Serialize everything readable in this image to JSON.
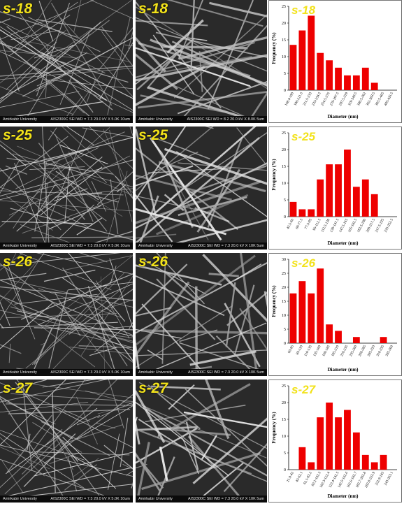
{
  "colors": {
    "sample_label": "#f2e21a",
    "bar_fill": "#ee0000",
    "sem_background": "#2a2a2a"
  },
  "rows": [
    {
      "sample": "s-18",
      "sem_left": {
        "institution": "Amirkabir University",
        "info": "AIS2300C  SEI  WD = 7.3  20.0 kV  X 5.0K   10um"
      },
      "sem_right": {
        "institution": "Amirkabir University",
        "info": "AIS2300C  SEI  WD = 8.2  20.0 kV  X 8.0K   5um"
      }
    },
    {
      "sample": "s-25",
      "sem_left": {
        "institution": "Amirkabir University",
        "info": "AIS2300C  SEI  WD = 7.3  20.0 kV  X 5.0K   10um"
      },
      "sem_right": {
        "institution": "Amirkabir University",
        "info": "AIS2300C  SEI  WD = 7.3  20.0 kV  X 10K   5um"
      }
    },
    {
      "sample": "s-26",
      "sem_left": {
        "institution": "Amirkabir University",
        "info": "AIS2300C  SEI  WD = 7.3  20.0 kV  X 5.0K   10um"
      },
      "sem_right": {
        "institution": "Amirkabir University",
        "info": "AIS2300C  SEI  WD = 7.3  20.0 kV  X 10K   5um"
      }
    },
    {
      "sample": "s-27",
      "sem_left": {
        "institution": "Amirkabir University",
        "info": "AIS2300C  SEI  WD = 7.3  20.0 kV  X 5.0K   10um"
      },
      "sem_right": {
        "institution": "Amirkabir University",
        "info": "AIS2300C  SEI  WD = 7.3  20.0 kV  X 10K   5um"
      }
    }
  ],
  "chart_data": [
    {
      "type": "bar",
      "title": "s-18",
      "xlabel": "Diameter (nm)",
      "ylabel": "Frequency (%)",
      "ylim": [
        0,
        25
      ],
      "yticks": [
        0,
        5,
        10,
        15,
        20,
        25
      ],
      "grid": false,
      "categories": [
        "168.4-190",
        "190-211.5",
        "211.5-233",
        "233-254.5",
        "254.5-276",
        "276-297.5",
        "297.5-319",
        "319-340.5",
        "340.5-362",
        "362-383.5",
        "383.5-405",
        "405-426.5"
      ],
      "values": [
        13.5,
        17.8,
        22.2,
        11.1,
        8.9,
        6.7,
        4.4,
        4.4,
        6.7,
        2.2,
        0,
        0
      ]
    },
    {
      "type": "bar",
      "title": "s-25",
      "xlabel": "Diameter (nm)",
      "ylabel": "Frequency (%)",
      "ylim": [
        0,
        25
      ],
      "yticks": [
        0,
        5,
        10,
        15,
        20,
        25
      ],
      "grid": false,
      "categories": [
        "42.5-60",
        "60-77.5",
        "77.5-95",
        "95-112.5",
        "112.5-130",
        "130-147.5",
        "147.5-165",
        "165-182.5",
        "182.5-200",
        "200-217.5",
        "217.5-235",
        "235-252.5"
      ],
      "values": [
        4.4,
        2.2,
        2.2,
        11.1,
        15.6,
        15.6,
        20,
        8.9,
        11.1,
        6.7,
        0,
        0
      ]
    },
    {
      "type": "bar",
      "title": "s-26",
      "xlabel": "Diameter (nm)",
      "ylabel": "Frequency (%)",
      "ylim": [
        0,
        30
      ],
      "yticks": [
        0,
        5,
        10,
        15,
        20,
        25,
        30
      ],
      "grid": false,
      "categories": [
        "60-85",
        "85-110",
        "110-135",
        "135-160",
        "160-185",
        "185-210",
        "210-235",
        "235-260",
        "260-285",
        "285-310",
        "310-335",
        "335-360"
      ],
      "values": [
        17.8,
        22.2,
        17.8,
        26.7,
        6.7,
        4.4,
        0,
        2.2,
        0,
        0,
        2.2,
        0
      ]
    },
    {
      "type": "bar",
      "title": "s-27",
      "xlabel": "Diameter (nm)",
      "ylabel": "Frequency (%)",
      "ylim": [
        0,
        25
      ],
      "yticks": [
        0,
        5,
        10,
        15,
        20,
        25
      ],
      "grid": false,
      "categories": [
        "21.9-42",
        "42-62.1",
        "62.1-82.2",
        "82.2-102.3",
        "102.3-122.4",
        "122.4-142.5",
        "142.5-162.6",
        "162.6-182.7",
        "182.7-202.8",
        "202.8-222.9",
        "222.9-243",
        "243-263.1"
      ],
      "values": [
        0,
        6.7,
        2.2,
        15.6,
        20,
        15.6,
        17.8,
        11.1,
        4.4,
        2.2,
        4.4,
        0
      ]
    }
  ]
}
